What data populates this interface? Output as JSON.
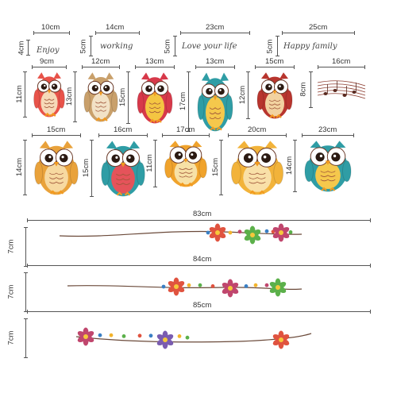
{
  "words": [
    {
      "width_label": "10cm",
      "height_label": "4cm",
      "text": "Enjoy"
    },
    {
      "width_label": "14cm",
      "height_label": "5cm",
      "text": "working"
    },
    {
      "width_label": "23cm",
      "height_label": "5cm",
      "text": "Love your life"
    },
    {
      "width_label": "25cm",
      "height_label": "5cm",
      "text": "Happy family"
    }
  ],
  "row1": [
    {
      "width_label": "9cm",
      "height_label": "11cm",
      "body": "#e8534a",
      "belly": "#f6d9b8"
    },
    {
      "width_label": "12cm",
      "height_label": "13cm",
      "body": "#c9a06b",
      "belly": "#f2e2c6"
    },
    {
      "width_label": "13cm",
      "height_label": "15cm",
      "body": "#d7394a",
      "belly": "#f4c542"
    },
    {
      "width_label": "13cm",
      "height_label": "17cm",
      "body": "#2f9da5",
      "belly": "#f5c84c"
    },
    {
      "width_label": "15cm",
      "height_label": "12cm",
      "body": "#b8352e",
      "belly": "#f2d2a0"
    },
    {
      "width_label": "16cm",
      "height_label": "8cm",
      "body": "#8c3b2e",
      "belly": "#ffffff"
    }
  ],
  "row2": [
    {
      "width_label": "15cm",
      "height_label": "14cm",
      "body": "#e9a23b",
      "belly": "#f7d9a0"
    },
    {
      "width_label": "16cm",
      "height_label": "15cm",
      "body": "#2f9da5",
      "belly": "#e5535a"
    },
    {
      "width_label": "17cm",
      "height_label": "11cm",
      "body": "#f0a32c",
      "belly": "#f7e1a6"
    },
    {
      "width_label": "20cm",
      "height_label": "15cm",
      "body": "#f2b33a",
      "belly": "#f9e0a8"
    },
    {
      "width_label": "23cm",
      "height_label": "14cm",
      "body": "#2f9da5",
      "belly": "#f5c84c"
    }
  ],
  "garlands": [
    {
      "width_label": "83cm",
      "height_label": "7cm"
    },
    {
      "width_label": "84cm",
      "height_label": "7cm"
    },
    {
      "width_label": "85cm",
      "height_label": "7cm"
    }
  ],
  "colors": {
    "dimension_line": "#555555",
    "text": "#333333",
    "branch": "#6b4a3a"
  }
}
